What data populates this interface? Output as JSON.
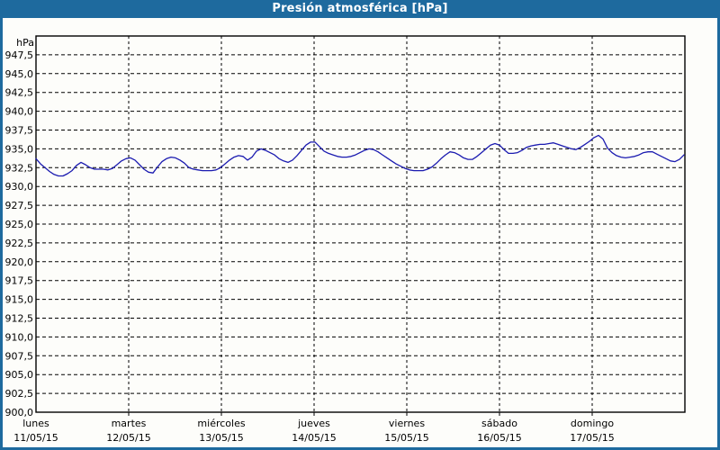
{
  "window": {
    "title": "Presión atmosférica [hPa]"
  },
  "colors": {
    "titlebar_bg": "#1e6a9e",
    "titlebar_text": "#ffffff",
    "window_border": "#1e6a9e",
    "content_bg": "#fdfdfa",
    "plot_border": "#000000",
    "grid": "#000000",
    "line": "#1b1bb0",
    "tick_text": "#000000"
  },
  "chart_data": {
    "type": "line",
    "title": "Presión atmosférica [hPa]",
    "y_unit": "hPa",
    "ylim": [
      900,
      950
    ],
    "ytick_step": 2.5,
    "ytick_labels": [
      "947,5",
      "945,0",
      "942,5",
      "940,0",
      "937,5",
      "935,0",
      "932,5",
      "930,0",
      "927,5",
      "925,0",
      "922,5",
      "920,0",
      "917,5",
      "915,0",
      "912,5",
      "910,0",
      "907,5",
      "905,0",
      "902,5",
      "900,0"
    ],
    "grid_style": "dashed",
    "legend": "none",
    "x_days": [
      {
        "name": "lunes",
        "date": "11/05/15"
      },
      {
        "name": "martes",
        "date": "12/05/15"
      },
      {
        "name": "miércoles",
        "date": "13/05/15"
      },
      {
        "name": "jueves",
        "date": "14/05/15"
      },
      {
        "name": "viernes",
        "date": "15/05/15"
      },
      {
        "name": "sábado",
        "date": "16/05/15"
      },
      {
        "name": "domingo",
        "date": "17/05/15"
      }
    ],
    "series": [
      {
        "name": "Presión atmosférica",
        "unit": "hPa",
        "x_span_days": [
          0,
          7
        ],
        "sampling": "uniform",
        "values": [
          933.7,
          933.0,
          932.5,
          932.0,
          931.6,
          931.4,
          931.4,
          931.7,
          932.1,
          932.8,
          933.2,
          932.9,
          932.5,
          932.3,
          932.3,
          932.3,
          932.2,
          932.4,
          932.9,
          933.4,
          933.7,
          933.8,
          933.5,
          932.9,
          932.3,
          931.9,
          931.8,
          932.6,
          933.3,
          933.7,
          933.9,
          933.8,
          933.5,
          933.1,
          932.5,
          932.3,
          932.2,
          932.1,
          932.1,
          932.1,
          932.2,
          932.5,
          933.0,
          933.5,
          933.9,
          934.1,
          934.0,
          933.5,
          933.9,
          934.7,
          935.0,
          934.8,
          934.5,
          934.2,
          933.7,
          933.4,
          933.2,
          933.5,
          934.1,
          934.8,
          935.5,
          935.9,
          935.9,
          935.3,
          934.7,
          934.4,
          934.2,
          934.0,
          933.9,
          933.9,
          934.0,
          934.2,
          934.5,
          934.8,
          935.0,
          934.9,
          934.6,
          934.2,
          933.8,
          933.4,
          933.0,
          932.7,
          932.4,
          932.2,
          932.1,
          932.1,
          932.1,
          932.3,
          932.6,
          933.1,
          933.7,
          934.2,
          934.6,
          934.5,
          934.2,
          933.8,
          933.6,
          933.6,
          934.0,
          934.5,
          935.0,
          935.5,
          935.7,
          935.5,
          934.9,
          934.4,
          934.4,
          934.5,
          934.8,
          935.2,
          935.4,
          935.5,
          935.6,
          935.6,
          935.7,
          935.8,
          935.6,
          935.4,
          935.2,
          935.0,
          934.9,
          935.2,
          935.6,
          936.0,
          936.5,
          936.8,
          936.3,
          935.1,
          934.5,
          934.1,
          933.9,
          933.8,
          933.9,
          934.0,
          934.2,
          934.5,
          934.6,
          934.6,
          934.3,
          934.0,
          933.7,
          933.4,
          933.3,
          933.6,
          934.2
        ]
      }
    ]
  }
}
